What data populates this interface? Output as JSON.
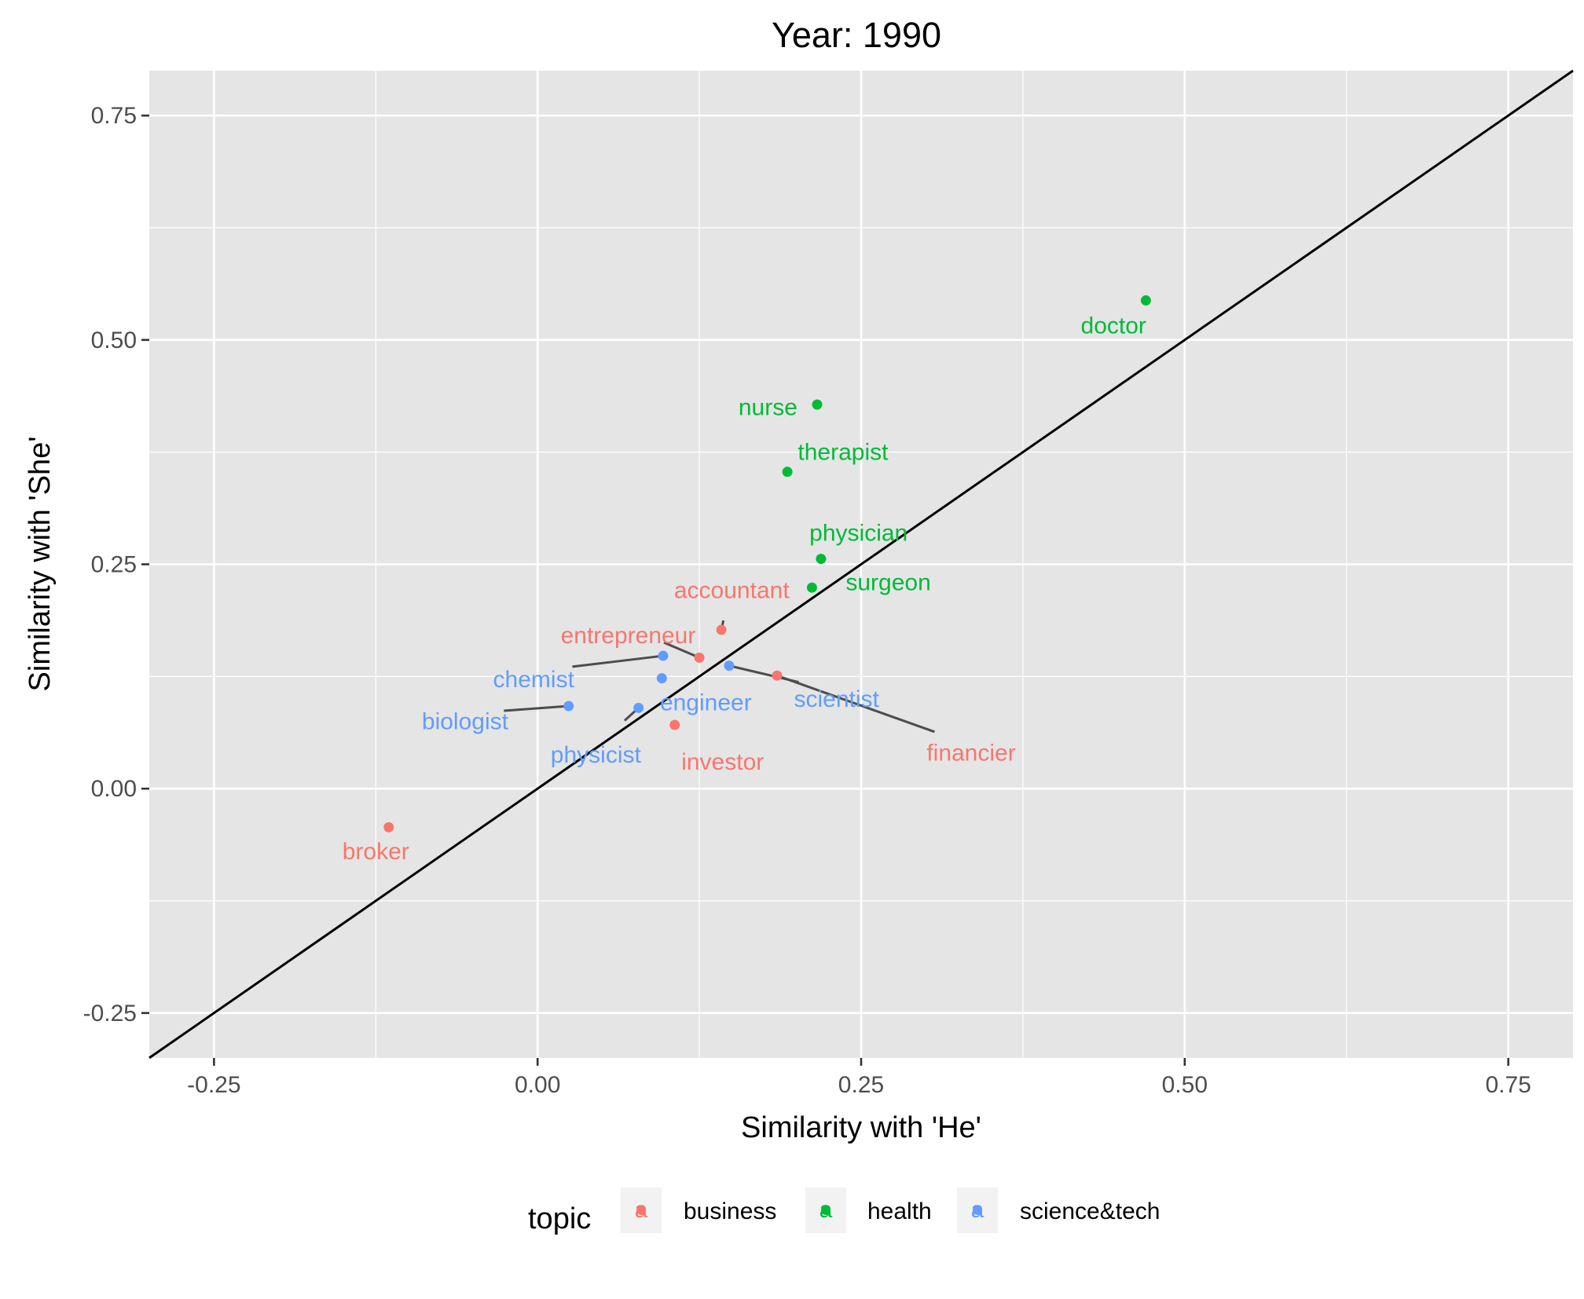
{
  "chart_data": {
    "type": "scatter",
    "title": "Year: 1990",
    "xlabel": "Similarity with 'He'",
    "ylabel": "Similarity with 'She'",
    "xlim": [
      -0.3,
      0.8
    ],
    "ylim": [
      -0.3,
      0.8
    ],
    "xticks": [
      -0.25,
      0.0,
      0.25,
      0.5,
      0.75
    ],
    "xtick_labels": [
      "-0.25",
      "0.00",
      "0.25",
      "0.50",
      "0.75"
    ],
    "yticks": [
      -0.25,
      0.0,
      0.25,
      0.5,
      0.75
    ],
    "ytick_labels": [
      "-0.25",
      "0.00",
      "0.25",
      "0.50",
      "0.75"
    ],
    "grid": true,
    "reference_line": "y = x",
    "legend": {
      "title": "topic",
      "placement": "bottom",
      "key_glyph": "a",
      "entries": [
        {
          "name": "business",
          "color": "#F8766D"
        },
        {
          "name": "health",
          "color": "#00BA38"
        },
        {
          "name": "science&tech",
          "color": "#619CFF"
        }
      ]
    },
    "points": [
      {
        "label": "broker",
        "topic": "business",
        "x": -0.115,
        "y": -0.043,
        "lx": -0.125,
        "ly": -0.07
      },
      {
        "label": "investor",
        "topic": "business",
        "x": 0.106,
        "y": 0.071,
        "lx": 0.143,
        "ly": 0.03
      },
      {
        "label": "financier",
        "topic": "business",
        "x": 0.185,
        "y": 0.126,
        "lx": 0.335,
        "ly": 0.04,
        "leader": true
      },
      {
        "label": "entrepreneur",
        "topic": "business",
        "x": 0.125,
        "y": 0.146,
        "lx": 0.07,
        "ly": 0.171,
        "leader": true
      },
      {
        "label": "accountant",
        "topic": "business",
        "x": 0.142,
        "y": 0.177,
        "lx": 0.15,
        "ly": 0.221,
        "leader": true
      },
      {
        "label": "doctor",
        "topic": "health",
        "x": 0.47,
        "y": 0.544,
        "lx": 0.445,
        "ly": 0.516
      },
      {
        "label": "nurse",
        "topic": "health",
        "x": 0.216,
        "y": 0.428,
        "lx": 0.178,
        "ly": 0.425
      },
      {
        "label": "therapist",
        "topic": "health",
        "x": 0.193,
        "y": 0.353,
        "lx": 0.236,
        "ly": 0.375
      },
      {
        "label": "physician",
        "topic": "health",
        "x": 0.219,
        "y": 0.256,
        "lx": 0.248,
        "ly": 0.285
      },
      {
        "label": "surgeon",
        "topic": "health",
        "x": 0.212,
        "y": 0.224,
        "lx": 0.271,
        "ly": 0.23
      },
      {
        "label": "chemist",
        "topic": "science&tech",
        "x": 0.097,
        "y": 0.148,
        "lx": -0.003,
        "ly": 0.122,
        "leader": true
      },
      {
        "label": "biologist",
        "topic": "science&tech",
        "x": 0.024,
        "y": 0.092,
        "lx": -0.056,
        "ly": 0.075,
        "leader": true
      },
      {
        "label": "physicist",
        "topic": "science&tech",
        "x": 0.078,
        "y": 0.09,
        "lx": 0.045,
        "ly": 0.038,
        "leader": true
      },
      {
        "label": "engineer",
        "topic": "science&tech",
        "x": 0.096,
        "y": 0.123,
        "lx": 0.13,
        "ly": 0.096
      },
      {
        "label": "scientist",
        "topic": "science&tech",
        "x": 0.148,
        "y": 0.137,
        "lx": 0.231,
        "ly": 0.1,
        "leader": true
      }
    ]
  }
}
